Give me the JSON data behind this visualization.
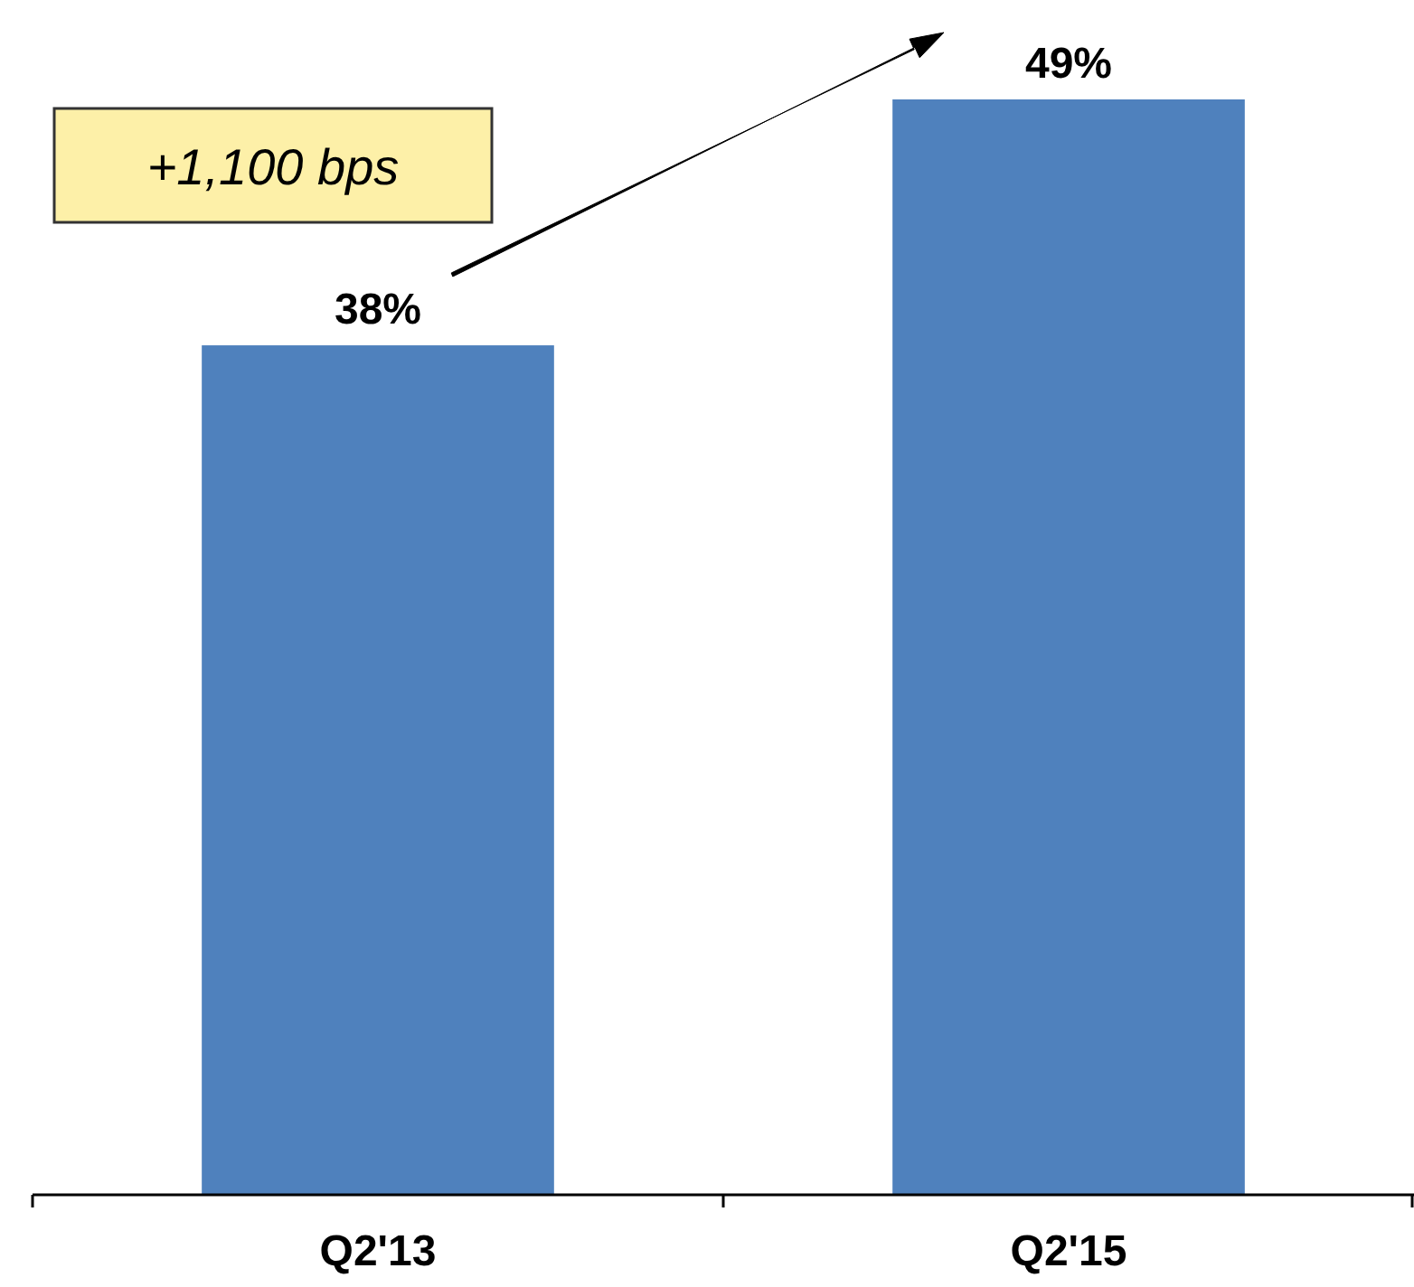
{
  "chart_data": {
    "type": "bar",
    "categories": [
      "Q2'13",
      "Q2'15"
    ],
    "values": [
      38,
      49
    ],
    "color": "#4f81bd",
    "value_labels": [
      "38%",
      "49%"
    ],
    "annotations": [
      "+1,100 bps"
    ]
  }
}
